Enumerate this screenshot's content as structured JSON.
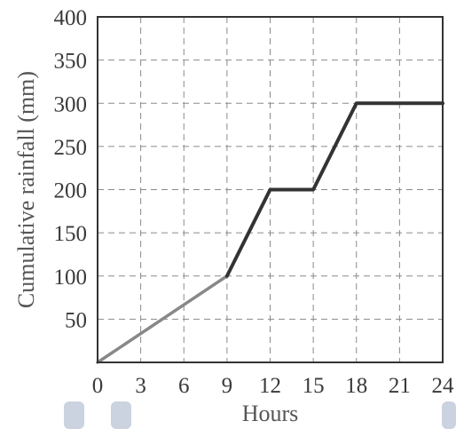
{
  "chart_data": {
    "type": "line",
    "title": "",
    "xlabel": "Hours",
    "ylabel": "Cumulative rainfall (mm)",
    "xlim": [
      0,
      24
    ],
    "ylim": [
      0,
      400
    ],
    "xticks": [
      0,
      3,
      6,
      9,
      12,
      15,
      18,
      21,
      24
    ],
    "yticks": [
      50,
      100,
      150,
      200,
      250,
      300,
      350,
      400
    ],
    "grid": true,
    "grid_style": "dashed",
    "legend": "none",
    "series": [
      {
        "x": [
          0,
          9,
          12,
          15,
          18,
          24
        ],
        "y": [
          0,
          100,
          200,
          200,
          300,
          300
        ]
      }
    ],
    "colors": {
      "early_segment": "#888888",
      "main_line": "#333333",
      "grid": "#8a8a8a",
      "frame": "#333333",
      "text": "#3a3a3a",
      "bottom_marks": "#a9b4cc"
    }
  }
}
